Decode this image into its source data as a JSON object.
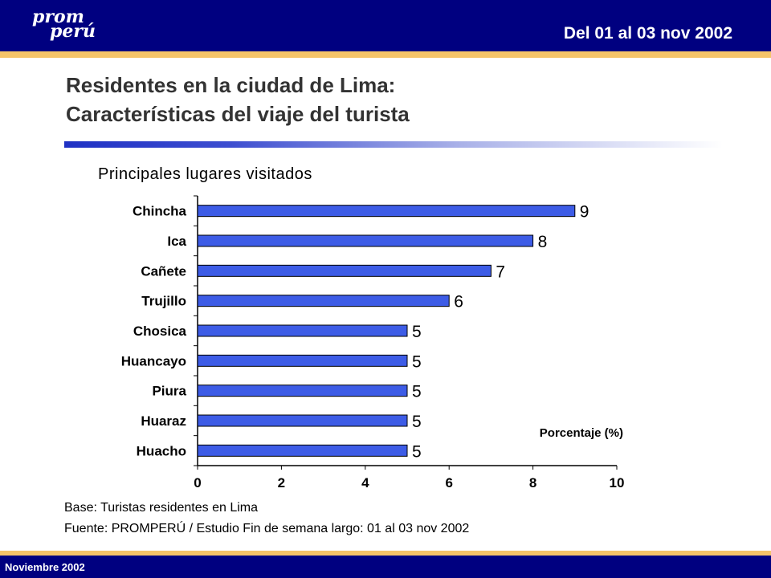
{
  "header": {
    "logo_line1": "prom",
    "logo_line2": "perú",
    "date_range": "Del 01 al 03 nov 2002"
  },
  "title": {
    "line1": "Residentes en la ciudad de Lima:",
    "line2": "Características del viaje del turista"
  },
  "chart_data": {
    "type": "bar",
    "orientation": "horizontal",
    "title": "Principales lugares visitados",
    "xlabel": "Porcentaje (%)",
    "ylabel": "",
    "categories": [
      "Chincha",
      "Ica",
      "Cañete",
      "Trujillo",
      "Chosica",
      "Huancayo",
      "Piura",
      "Huaraz",
      "Huacho"
    ],
    "values": [
      9,
      8,
      7,
      6,
      5,
      5,
      5,
      5,
      5
    ],
    "xlim": [
      0,
      10
    ],
    "xticks": [
      "0",
      "2",
      "4",
      "6",
      "8",
      "10"
    ],
    "bar_color": "#3d5ce6",
    "grid": false
  },
  "notes": {
    "base": "Base: Turistas residentes en Lima",
    "source": "Fuente: PROMPERÚ / Estudio Fin de semana largo: 01 al 03 nov 2002"
  },
  "footer": {
    "date": "Noviembre 2002"
  }
}
